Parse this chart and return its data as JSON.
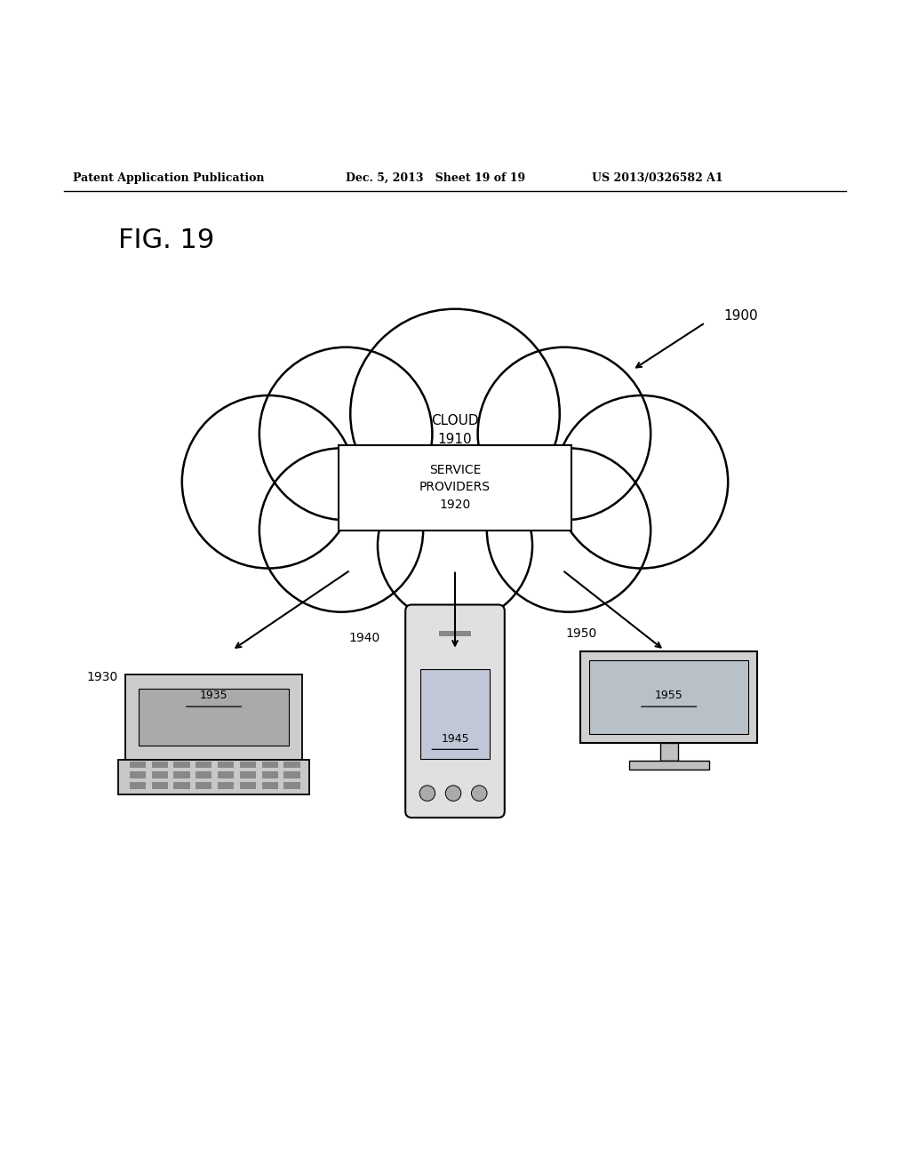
{
  "header_left": "Patent Application Publication",
  "header_mid": "Dec. 5, 2013   Sheet 19 of 19",
  "header_right": "US 2013/0326582 A1",
  "fig_label": "FIG. 19",
  "label_1900": "1900",
  "label_1910": "CLOUD\n1910",
  "label_1920": "SERVICE\nPROVIDERS\n1920",
  "label_1930": "1930",
  "label_1935": "1935",
  "label_1940": "1940",
  "label_1945": "1945",
  "label_1950": "1950",
  "label_1955": "1955",
  "bg_color": "#ffffff",
  "line_color": "#000000"
}
